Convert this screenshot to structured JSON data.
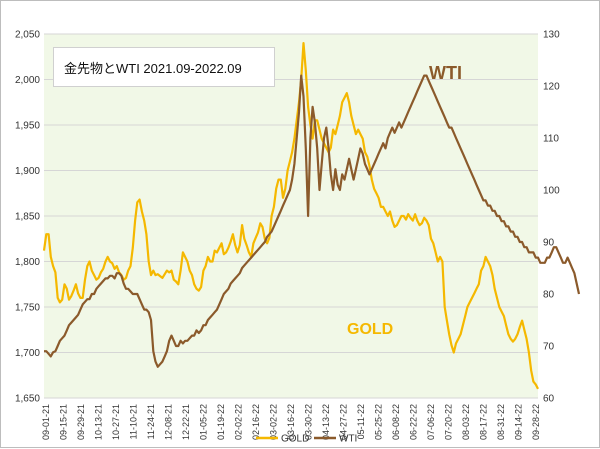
{
  "chart_data": {
    "type": "line",
    "title": "金先物とWTI 2021.09-2022.09",
    "legend_placement": "bottom",
    "grid": {
      "horizontal": true,
      "vertical": false
    },
    "x_tick_labels": [
      "09-01-21",
      "09-15-21",
      "09-29-21",
      "10-13-21",
      "10-27-21",
      "11-10-21",
      "11-24-21",
      "12-08-21",
      "12-22-21",
      "01-05-22",
      "01-19-22",
      "02-02-22",
      "02-16-22",
      "03-02-22",
      "03-16-22",
      "03-30-22",
      "04-13-22",
      "04-27-22",
      "05-11-22",
      "05-25-22",
      "06-08-22",
      "06-22-22",
      "07-06-22",
      "07-20-22",
      "08-03-22",
      "08-17-22",
      "08-31-22",
      "09-14-22",
      "09-28-22"
    ],
    "y_left": {
      "ticks": [
        "1,650",
        "1,700",
        "1,750",
        "1,800",
        "1,850",
        "1,900",
        "1,950",
        "2,000",
        "2,050"
      ],
      "ylim": [
        1650,
        2050
      ]
    },
    "y_right": {
      "ticks": [
        "60",
        "70",
        "80",
        "90",
        "100",
        "110",
        "120",
        "130"
      ],
      "ylim": [
        60,
        130
      ]
    },
    "annotations": {
      "wti": "WTI",
      "gold": "GOLD"
    },
    "series": [
      {
        "name": "GOLD",
        "axis": "left",
        "color": "#f5b800",
        "values": [
          1812,
          1830,
          1830,
          1805,
          1795,
          1788,
          1760,
          1755,
          1758,
          1775,
          1770,
          1758,
          1762,
          1768,
          1775,
          1765,
          1760,
          1760,
          1780,
          1795,
          1800,
          1790,
          1785,
          1780,
          1782,
          1788,
          1792,
          1800,
          1805,
          1800,
          1798,
          1792,
          1795,
          1788,
          1785,
          1780,
          1782,
          1790,
          1795,
          1815,
          1845,
          1865,
          1868,
          1855,
          1845,
          1830,
          1800,
          1785,
          1790,
          1785,
          1786,
          1784,
          1782,
          1786,
          1790,
          1788,
          1790,
          1780,
          1778,
          1775,
          1790,
          1810,
          1805,
          1800,
          1790,
          1785,
          1775,
          1770,
          1768,
          1772,
          1790,
          1795,
          1805,
          1800,
          1800,
          1812,
          1810,
          1815,
          1820,
          1808,
          1810,
          1815,
          1822,
          1830,
          1818,
          1810,
          1818,
          1840,
          1825,
          1818,
          1810,
          1805,
          1820,
          1826,
          1832,
          1842,
          1838,
          1825,
          1820,
          1826,
          1850,
          1860,
          1880,
          1890,
          1890,
          1870,
          1880,
          1900,
          1910,
          1920,
          1935,
          1955,
          1975,
          2000,
          2040,
          2010,
          1970,
          1950,
          1935,
          1955,
          1955,
          1945,
          1935,
          1930,
          1925,
          1920,
          1925,
          1945,
          1940,
          1950,
          1960,
          1975,
          1980,
          1985,
          1975,
          1960,
          1950,
          1940,
          1945,
          1940,
          1935,
          1920,
          1915,
          1905,
          1890,
          1880,
          1875,
          1870,
          1860,
          1860,
          1855,
          1850,
          1855,
          1845,
          1838,
          1840,
          1845,
          1850,
          1850,
          1846,
          1852,
          1848,
          1845,
          1852,
          1845,
          1840,
          1842,
          1848,
          1845,
          1840,
          1825,
          1820,
          1810,
          1800,
          1805,
          1800,
          1750,
          1735,
          1720,
          1708,
          1700,
          1710,
          1715,
          1720,
          1730,
          1740,
          1750,
          1755,
          1760,
          1765,
          1770,
          1775,
          1790,
          1795,
          1805,
          1800,
          1795,
          1785,
          1770,
          1760,
          1750,
          1745,
          1740,
          1730,
          1720,
          1715,
          1712,
          1715,
          1720,
          1728,
          1735,
          1725,
          1715,
          1700,
          1680,
          1668,
          1665,
          1660
        ]
      },
      {
        "name": "WTI",
        "axis": "right",
        "color": "#8b5a2b",
        "values": [
          69,
          69,
          68.5,
          68,
          68.8,
          69,
          70,
          71,
          71.5,
          72,
          73,
          74,
          74.5,
          75,
          75.5,
          76,
          77,
          78,
          78.5,
          79,
          79,
          80,
          80,
          81,
          81.5,
          82,
          82.5,
          83,
          83,
          83.5,
          83.5,
          83,
          84,
          84,
          83.5,
          82,
          81,
          81,
          80.5,
          80,
          80,
          80,
          79,
          78,
          77,
          77,
          76.5,
          75,
          69,
          67,
          66,
          66.5,
          67,
          68,
          69,
          71,
          72,
          71,
          70,
          70,
          71,
          70.5,
          71,
          71,
          71.5,
          72,
          72,
          73,
          72.5,
          73,
          74,
          74,
          75,
          75.5,
          76,
          76.5,
          77,
          78,
          79,
          80,
          80.5,
          81,
          82,
          82.5,
          83,
          83.5,
          84,
          85,
          85.5,
          86,
          86.5,
          87,
          87.5,
          88,
          88.5,
          89,
          89.5,
          90,
          91,
          91.5,
          92,
          93,
          94,
          95,
          96,
          97,
          98,
          99,
          100,
          102,
          105,
          110,
          115,
          122,
          118,
          108,
          95,
          110,
          116,
          113,
          108,
          100,
          105,
          110,
          112,
          108,
          103,
          100,
          104,
          101,
          100,
          103,
          102,
          104,
          106,
          104,
          102,
          104,
          106,
          108,
          107,
          105,
          104,
          103,
          104,
          105,
          106,
          107,
          108,
          109,
          108,
          110,
          111,
          112,
          111,
          112,
          113,
          112,
          113,
          114,
          115,
          116,
          117,
          118,
          119,
          120,
          121,
          122,
          122,
          121,
          120,
          119,
          118,
          117,
          116,
          115,
          114,
          113,
          112,
          112,
          111,
          110,
          109,
          108,
          107,
          106,
          105,
          104,
          103,
          102,
          101,
          100,
          99,
          98,
          98,
          97,
          97,
          96,
          96,
          95,
          95,
          94,
          94,
          93,
          93,
          92,
          92,
          91,
          91,
          90,
          90,
          89,
          89,
          88,
          88,
          88,
          87,
          87,
          86,
          86,
          86,
          87,
          87,
          88,
          89,
          89,
          88,
          87,
          86,
          86,
          87,
          86,
          85,
          84,
          82,
          80
        ]
      }
    ]
  }
}
